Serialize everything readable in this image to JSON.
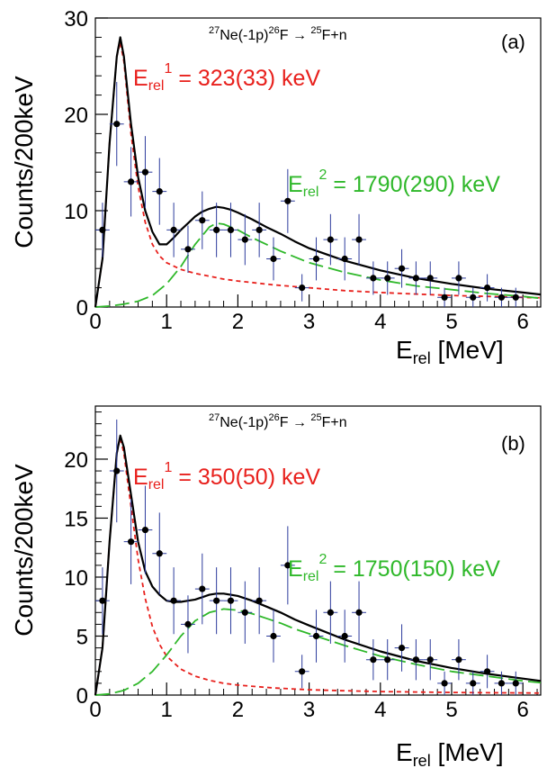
{
  "chart_data": [
    {
      "type": "scatter",
      "panel_label": "(a)",
      "reaction": {
        "part1": "Ne(-1p)",
        "part2": "F",
        "part3": "F+n",
        "sup1": "27",
        "sup2": "26",
        "sup3": "25",
        "arrow": "→"
      },
      "xlabel": {
        "main": "E",
        "sub": "rel",
        "unit": "[MeV]"
      },
      "ylabel": "Counts/200keV",
      "xlim": [
        0,
        6.25
      ],
      "ylim": [
        0,
        30
      ],
      "xticks": [
        "0",
        "1",
        "2",
        "3",
        "4",
        "5",
        "6"
      ],
      "yticks": [
        "0",
        "10",
        "20",
        "30"
      ],
      "ytick_values": [
        0,
        10,
        20,
        30
      ],
      "annotations": [
        {
          "main": "E",
          "sub": "rel",
          "sup": "1",
          "text": " = 323(33) keV",
          "color": "#e8201c"
        },
        {
          "main": "E",
          "sub": "rel",
          "sup": "2",
          "text": " = 1790(290) keV",
          "color": "#2fb82a"
        }
      ],
      "points": {
        "x": [
          0.1,
          0.3,
          0.5,
          0.7,
          0.9,
          1.1,
          1.3,
          1.5,
          1.7,
          1.9,
          2.1,
          2.3,
          2.5,
          2.7,
          2.9,
          3.1,
          3.3,
          3.5,
          3.7,
          3.9,
          4.1,
          4.3,
          4.5,
          4.7,
          4.9,
          5.1,
          5.3,
          5.5,
          5.7,
          5.9
        ],
        "y": [
          8,
          19,
          13,
          14,
          12,
          8,
          6,
          9,
          8,
          8,
          7,
          8,
          5,
          11,
          2,
          5,
          7,
          5,
          7,
          3,
          3,
          4,
          3,
          3,
          1,
          3,
          1,
          2,
          1,
          1
        ]
      },
      "curves": {
        "total": {
          "color": "#000000",
          "x": [
            0,
            0.1,
            0.2,
            0.3,
            0.35,
            0.4,
            0.5,
            0.6,
            0.7,
            0.8,
            0.9,
            1.0,
            1.1,
            1.2,
            1.3,
            1.4,
            1.5,
            1.6,
            1.7,
            1.8,
            1.9,
            2.0,
            2.2,
            2.4,
            2.6,
            2.8,
            3.0,
            3.5,
            4.0,
            4.5,
            5.0,
            5.5,
            6.0,
            6.25
          ],
          "y": [
            0,
            5,
            17,
            26,
            28,
            26,
            19,
            13.5,
            10,
            7.8,
            6.5,
            6.5,
            7.2,
            8.0,
            8.7,
            9.4,
            9.9,
            10.2,
            10.4,
            10.3,
            10.1,
            9.8,
            9.1,
            8.3,
            7.6,
            6.8,
            6.1,
            4.8,
            3.8,
            3.0,
            2.4,
            1.9,
            1.5,
            1.3
          ]
        },
        "peak1": {
          "color": "#e8201c",
          "x": [
            0,
            0.1,
            0.2,
            0.3,
            0.35,
            0.4,
            0.5,
            0.6,
            0.7,
            0.8,
            0.9,
            1.0,
            1.2,
            1.4,
            1.6,
            1.8,
            2.0,
            2.5,
            3.0,
            3.5,
            4.0,
            4.5,
            5.0,
            5.5,
            6.0,
            6.25
          ],
          "y": [
            0,
            5,
            17,
            26,
            27.5,
            25.5,
            18,
            12.5,
            8.8,
            6.5,
            5.3,
            4.6,
            3.9,
            3.5,
            3.2,
            2.9,
            2.7,
            2.3,
            2.0,
            1.7,
            1.5,
            1.35,
            1.2,
            1.1,
            1.0,
            0.95
          ]
        },
        "peak2": {
          "color": "#2fb82a",
          "x": [
            0,
            0.2,
            0.4,
            0.6,
            0.8,
            1.0,
            1.2,
            1.4,
            1.6,
            1.7,
            1.8,
            2.0,
            2.2,
            2.4,
            2.6,
            2.8,
            3.0,
            3.5,
            4.0,
            4.5,
            5.0,
            5.5,
            6.0,
            6.25
          ],
          "y": [
            0,
            0.1,
            0.3,
            0.6,
            1.2,
            2.4,
            4.2,
            6.5,
            8.3,
            8.7,
            8.6,
            8.0,
            7.2,
            6.5,
            5.8,
            5.2,
            4.6,
            3.6,
            2.8,
            2.2,
            1.8,
            1.4,
            1.1,
            0.9
          ]
        }
      }
    },
    {
      "type": "scatter",
      "panel_label": "(b)",
      "reaction": {
        "part1": "Ne(-1p)",
        "part2": "F",
        "part3": "F+n",
        "sup1": "27",
        "sup2": "26",
        "sup3": "25",
        "arrow": "→"
      },
      "xlabel": {
        "main": "E",
        "sub": "rel",
        "unit": "[MeV]"
      },
      "ylabel": "Counts/200keV",
      "xlim": [
        0,
        6.25
      ],
      "ylim": [
        0,
        24.5
      ],
      "xticks": [
        "0",
        "1",
        "2",
        "3",
        "4",
        "5",
        "6"
      ],
      "yticks": [
        "0",
        "5",
        "10",
        "15",
        "20"
      ],
      "ytick_values": [
        0,
        5,
        10,
        15,
        20
      ],
      "annotations": [
        {
          "main": "E",
          "sub": "rel",
          "sup": "1",
          "text": " = 350(50) keV",
          "color": "#e8201c"
        },
        {
          "main": "E",
          "sub": "rel",
          "sup": "2",
          "text": " = 1750(150) keV",
          "color": "#2fb82a"
        }
      ],
      "points": {
        "x": [
          0.1,
          0.3,
          0.5,
          0.7,
          0.9,
          1.1,
          1.3,
          1.5,
          1.7,
          1.9,
          2.1,
          2.3,
          2.5,
          2.7,
          2.9,
          3.1,
          3.3,
          3.5,
          3.7,
          3.9,
          4.1,
          4.3,
          4.5,
          4.7,
          4.9,
          5.1,
          5.3,
          5.5,
          5.7,
          5.9
        ],
        "y": [
          8,
          19,
          13,
          14,
          12,
          8,
          6,
          9,
          8,
          8,
          7,
          8,
          5,
          11,
          2,
          5,
          7,
          5,
          7,
          3,
          3,
          4,
          3,
          3,
          1,
          3,
          1,
          2,
          1,
          1
        ]
      },
      "curves": {
        "total": {
          "color": "#000000",
          "x": [
            0,
            0.1,
            0.2,
            0.3,
            0.35,
            0.4,
            0.5,
            0.6,
            0.7,
            0.8,
            0.9,
            1.0,
            1.1,
            1.2,
            1.3,
            1.4,
            1.5,
            1.6,
            1.7,
            1.8,
            1.9,
            2.0,
            2.2,
            2.4,
            2.6,
            2.8,
            3.0,
            3.5,
            4.0,
            4.5,
            5.0,
            5.5,
            6.0,
            6.25
          ],
          "y": [
            0,
            4,
            13,
            20.5,
            22,
            21,
            17,
            13,
            10.5,
            9.2,
            8.5,
            8.0,
            7.9,
            7.9,
            8.0,
            8.1,
            8.3,
            8.5,
            8.6,
            8.6,
            8.5,
            8.4,
            8.0,
            7.5,
            7.0,
            6.4,
            5.9,
            4.7,
            3.7,
            2.9,
            2.3,
            1.8,
            1.4,
            1.2
          ]
        },
        "peak1": {
          "color": "#e8201c",
          "x": [
            0,
            0.1,
            0.2,
            0.3,
            0.35,
            0.4,
            0.5,
            0.6,
            0.7,
            0.8,
            0.9,
            1.0,
            1.2,
            1.4,
            1.6,
            1.8,
            2.0,
            2.5,
            3.0,
            3.5,
            4.0,
            4.5,
            5.0,
            5.5,
            6.0,
            6.25
          ],
          "y": [
            0,
            4,
            13,
            20.5,
            21.8,
            20.5,
            16,
            11.5,
            8.2,
            5.8,
            4.3,
            3.3,
            2.2,
            1.6,
            1.25,
            1.0,
            0.85,
            0.6,
            0.45,
            0.37,
            0.3,
            0.26,
            0.22,
            0.2,
            0.18,
            0.17
          ]
        },
        "peak2": {
          "color": "#2fb82a",
          "x": [
            0,
            0.2,
            0.4,
            0.6,
            0.8,
            1.0,
            1.2,
            1.4,
            1.6,
            1.8,
            2.0,
            2.2,
            2.4,
            2.6,
            2.8,
            3.0,
            3.5,
            4.0,
            4.5,
            5.0,
            5.5,
            6.0,
            6.25
          ],
          "y": [
            0,
            0.1,
            0.4,
            1.0,
            2.0,
            3.4,
            5.0,
            6.3,
            7.0,
            7.3,
            7.2,
            6.9,
            6.5,
            6.1,
            5.6,
            5.2,
            4.2,
            3.3,
            2.6,
            2.0,
            1.6,
            1.2,
            1.05
          ]
        }
      }
    }
  ]
}
